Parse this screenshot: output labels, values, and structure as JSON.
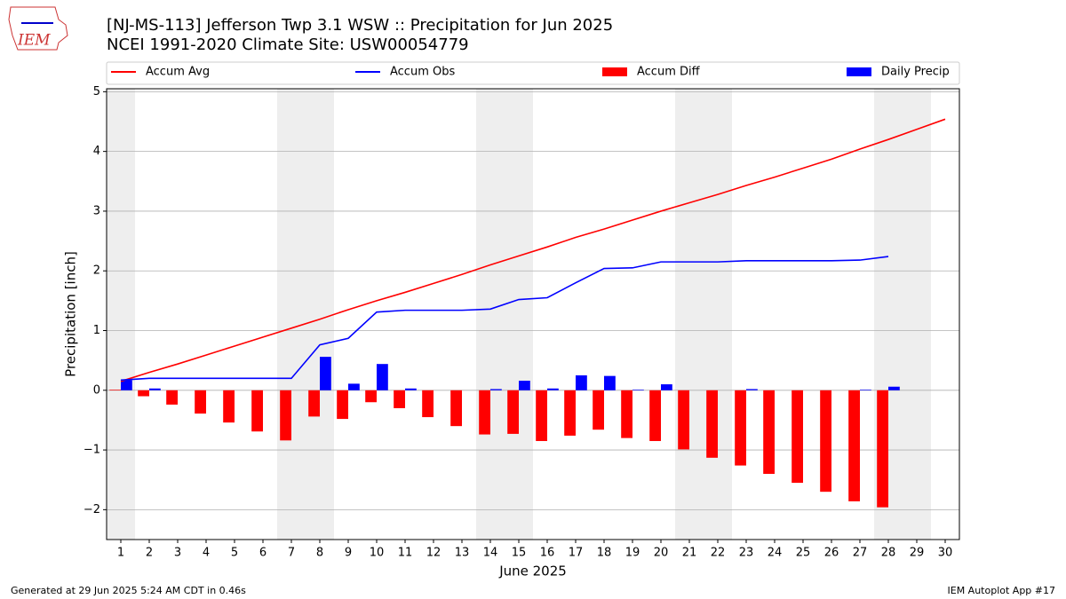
{
  "chart_data": {
    "type": "combo",
    "title": "[NJ-MS-113] Jefferson Twp 3.1 WSW :: Precipitation for Jun 2025",
    "subtitle": "NCEI 1991-2020 Climate Site: USW00054779",
    "logo_text": "IEM",
    "xlabel": "June 2025",
    "ylabel": "Precipitation [inch]",
    "footer_left": "Generated at 29 Jun 2025 5:24 AM CDT in 0.46s",
    "footer_right": "IEM Autoplot App #17",
    "x": [
      1,
      2,
      3,
      4,
      5,
      6,
      7,
      8,
      9,
      10,
      11,
      12,
      13,
      14,
      15,
      16,
      17,
      18,
      19,
      20,
      21,
      22,
      23,
      24,
      25,
      26,
      27,
      28,
      29,
      30
    ],
    "xlim": [
      0.5,
      30.5
    ],
    "xticks": [
      1,
      2,
      3,
      4,
      5,
      6,
      7,
      8,
      9,
      10,
      11,
      12,
      13,
      14,
      15,
      16,
      17,
      18,
      19,
      20,
      21,
      22,
      23,
      24,
      25,
      26,
      27,
      28,
      29,
      30
    ],
    "ylim": [
      -2.5,
      5.05
    ],
    "yticks": [
      {
        "value": -2,
        "label": "−2"
      },
      {
        "value": -1,
        "label": "−1"
      },
      0,
      1,
      2,
      3,
      4,
      5
    ],
    "grid": true,
    "shaded_spans": [
      [
        0.5,
        1.5
      ],
      [
        6.5,
        8.5
      ],
      [
        13.5,
        15.5
      ],
      [
        20.5,
        22.5
      ],
      [
        27.5,
        29.5
      ]
    ],
    "series": [
      {
        "name": "Accum Avg",
        "kind": "line",
        "color": "#ff0000",
        "values": [
          0.15,
          0.3,
          0.44,
          0.59,
          0.74,
          0.89,
          1.04,
          1.19,
          1.35,
          1.5,
          1.64,
          1.79,
          1.94,
          2.1,
          2.25,
          2.4,
          2.56,
          2.7,
          2.85,
          3.0,
          3.14,
          3.28,
          3.43,
          3.57,
          3.72,
          3.87,
          4.04,
          4.2,
          4.37,
          4.54
        ]
      },
      {
        "name": "Accum Obs",
        "kind": "line",
        "color": "#0000ff",
        "values": [
          0.17,
          0.2,
          0.2,
          0.2,
          0.2,
          0.2,
          0.2,
          0.76,
          0.87,
          1.31,
          1.34,
          1.34,
          1.34,
          1.36,
          1.52,
          1.55,
          1.8,
          2.04,
          2.05,
          2.15,
          2.15,
          2.15,
          2.17,
          2.17,
          2.17,
          2.17,
          2.18,
          2.24,
          null,
          null
        ]
      },
      {
        "name": "Accum Diff",
        "kind": "bar",
        "offset": -1,
        "color": "#ff0000",
        "values": [
          0.01,
          -0.1,
          -0.24,
          -0.39,
          -0.54,
          -0.69,
          -0.84,
          -0.44,
          -0.48,
          -0.2,
          -0.3,
          -0.45,
          -0.6,
          -0.74,
          -0.73,
          -0.85,
          -0.76,
          -0.66,
          -0.8,
          -0.85,
          -0.99,
          -1.13,
          -1.26,
          -1.4,
          -1.55,
          -1.7,
          -1.86,
          -1.96,
          null,
          null
        ]
      },
      {
        "name": "Daily Precip",
        "kind": "bar",
        "offset": 1,
        "color": "#0000ff",
        "values": [
          0.17,
          0.03,
          0,
          0,
          0,
          0,
          0,
          0.56,
          0.11,
          0.44,
          0.03,
          0,
          0,
          0.02,
          0.16,
          0.03,
          0.25,
          0.24,
          0.01,
          0.1,
          0,
          0,
          0.02,
          0,
          0,
          0,
          0.01,
          0.06,
          null,
          null
        ]
      }
    ]
  }
}
